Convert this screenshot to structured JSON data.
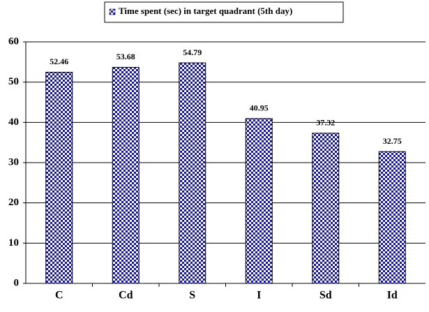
{
  "chart_data": {
    "type": "bar",
    "categories": [
      "C",
      "Cd",
      "S",
      "I",
      "Sd",
      "Id"
    ],
    "series": [
      {
        "name": "Time spent (sec) in target quadrant (5th day)",
        "color": "#1010c8",
        "values": [
          52.46,
          53.68,
          54.79,
          40.95,
          37.32,
          32.75
        ]
      }
    ],
    "ylim": [
      0,
      60
    ],
    "yticks": [
      0,
      10,
      20,
      30,
      40,
      50,
      60
    ],
    "grid": true,
    "show_value_labels": true
  }
}
